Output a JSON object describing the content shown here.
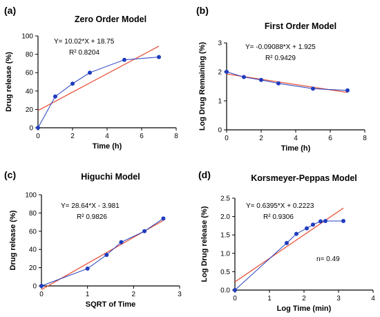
{
  "chart_data": [
    {
      "panel": "(a)",
      "title": "Zero Order Model",
      "type": "scatter",
      "xlabel": "Time (h)",
      "ylabel": "Drug release (%)",
      "xlim": [
        0,
        8
      ],
      "ylim": [
        0,
        100
      ],
      "xticks": [
        0,
        2,
        4,
        6,
        8
      ],
      "yticks": [
        0,
        20,
        40,
        60,
        80,
        100
      ],
      "series": [
        {
          "kind": "data",
          "color": "#1f3cbf",
          "points": [
            [
              0,
              0
            ],
            [
              1,
              34
            ],
            [
              2,
              48
            ],
            [
              3,
              60
            ],
            [
              5,
              74
            ],
            [
              7,
              77
            ]
          ]
        },
        {
          "kind": "fit",
          "color": "#e8533a",
          "x_range": [
            0,
            7
          ],
          "slope": 10.02,
          "intercept": 18.75
        }
      ],
      "equation": "Y= 10.02*X + 18.75",
      "r2_label": "R² 0.8204",
      "note": ""
    },
    {
      "panel": "(b)",
      "title": "First Order Model",
      "type": "scatter",
      "xlabel": "Time (h)",
      "ylabel": "Log Drug Remaining (%)",
      "xlim": [
        0,
        8
      ],
      "ylim": [
        0,
        3
      ],
      "xticks": [
        0,
        2,
        4,
        6,
        8
      ],
      "yticks": [
        0,
        1,
        2,
        3
      ],
      "series": [
        {
          "kind": "data",
          "color": "#1f3cbf",
          "points": [
            [
              0,
              2.0
            ],
            [
              1,
              1.82
            ],
            [
              2,
              1.72
            ],
            [
              3,
              1.6
            ],
            [
              5,
              1.42
            ],
            [
              7,
              1.36
            ]
          ]
        },
        {
          "kind": "fit",
          "color": "#e8533a",
          "x_range": [
            0,
            7
          ],
          "slope": -0.09088,
          "intercept": 1.925
        }
      ],
      "equation": "Y= -0.09088*X + 1.925",
      "r2_label": "R² 0.9429",
      "note": ""
    },
    {
      "panel": "(c)",
      "title": "Higuchi Model",
      "type": "scatter",
      "xlabel": "SQRT of Time",
      "ylabel": "Drug release (%)",
      "xlim": [
        0,
        3
      ],
      "ylim": [
        0,
        100
      ],
      "xticks": [
        0,
        1,
        2,
        3
      ],
      "yticks": [
        0,
        20,
        40,
        60,
        80,
        100
      ],
      "series": [
        {
          "kind": "data",
          "color": "#1f3cbf",
          "points": [
            [
              0,
              0
            ],
            [
              1,
              19
            ],
            [
              1.414,
              34
            ],
            [
              1.732,
              48
            ],
            [
              2.236,
              60
            ],
            [
              2.646,
              74
            ]
          ]
        },
        {
          "kind": "fit",
          "color": "#e8533a",
          "x_range": [
            0,
            2.646
          ],
          "slope": 28.64,
          "intercept": -3.981
        }
      ],
      "equation": "Y= 28.64*X -  3.981",
      "r2_label": "R² 0.9826",
      "note": ""
    },
    {
      "panel": "(d)",
      "title": "Korsmeyer-Peppas Model",
      "type": "scatter",
      "xlabel": "Log Time (min)",
      "ylabel": "Log Drug release (%)",
      "xlim": [
        0,
        4
      ],
      "ylim": [
        0,
        2.5
      ],
      "xticks": [
        0,
        1,
        2,
        3,
        4
      ],
      "yticks": [
        0.0,
        0.5,
        1.0,
        1.5,
        2.0,
        2.5
      ],
      "series": [
        {
          "kind": "data",
          "color": "#1f3cbf",
          "points": [
            [
              0,
              0
            ],
            [
              1.5,
              1.28
            ],
            [
              1.78,
              1.53
            ],
            [
              2.08,
              1.68
            ],
            [
              2.26,
              1.78
            ],
            [
              2.48,
              1.87
            ],
            [
              2.62,
              1.88
            ],
            [
              3.14,
              1.88
            ]
          ]
        },
        {
          "kind": "fit",
          "color": "#e8533a",
          "x_range": [
            0,
            3.14
          ],
          "slope": 0.6395,
          "intercept": 0.2223
        }
      ],
      "equation": "Y= 0.6395*X + 0.2223",
      "r2_label": "R² 0.9306",
      "note": "n= 0.49"
    }
  ]
}
